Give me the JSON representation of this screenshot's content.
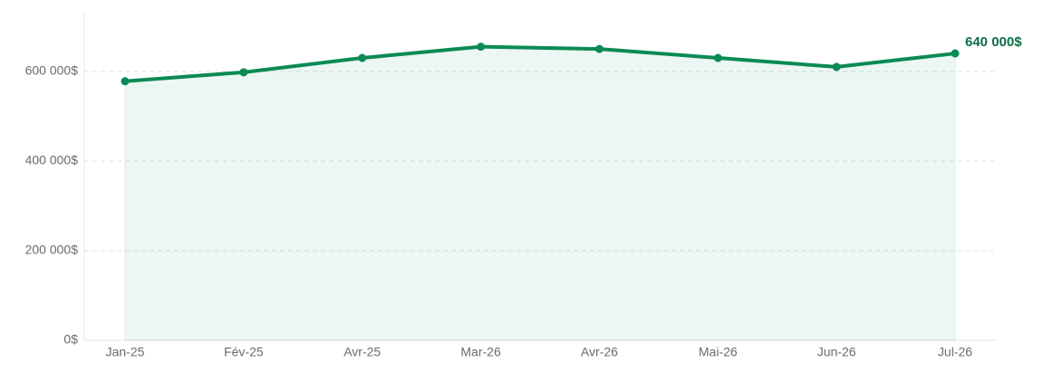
{
  "chart_data": {
    "type": "line",
    "categories": [
      "Jan-25",
      "Fév-25",
      "Avr-25",
      "Mar-26",
      "Avr-26",
      "Mai-26",
      "Jun-26",
      "Jul-26"
    ],
    "values": [
      578000,
      598000,
      630000,
      655000,
      650000,
      630000,
      610000,
      640000
    ],
    "value_labels": [
      null,
      null,
      null,
      null,
      null,
      null,
      null,
      "640 000$"
    ],
    "color": "#0a8a55",
    "area": true,
    "ylim": [
      0,
      733000
    ],
    "yticks": [
      {
        "value": 0,
        "label": "0$"
      },
      {
        "value": 200000,
        "label": "200 000$"
      },
      {
        "value": 400000,
        "label": "400 000$"
      },
      {
        "value": 600000,
        "label": "600 000$"
      }
    ],
    "grid": true
  }
}
